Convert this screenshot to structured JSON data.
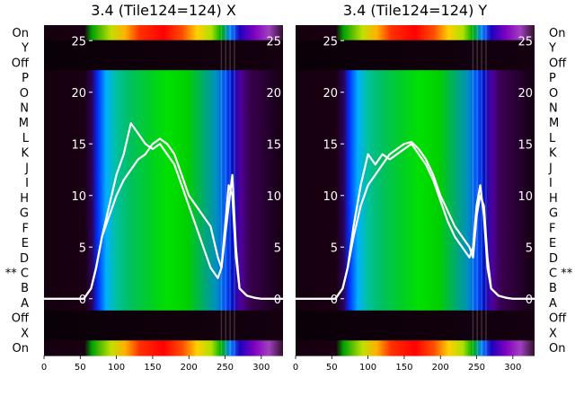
{
  "chart_data": [
    {
      "type": "heatmap",
      "title": "3.4 (Tile124=124) X",
      "row_labels": [
        "On",
        "Y",
        "Off",
        "P",
        "O",
        "N",
        "M",
        "L",
        "K",
        "J",
        "I",
        "H",
        "G",
        "F",
        "E",
        "D",
        "** C",
        "B",
        "A",
        "Off",
        "X",
        "On"
      ],
      "x_ticks": [
        0,
        50,
        100,
        150,
        200,
        250,
        300
      ],
      "xlim": [
        0,
        330
      ],
      "overlay_y_ticks": [
        0,
        5,
        10,
        15,
        20,
        25
      ],
      "overlay_ylim": [
        -5.5,
        26.5
      ],
      "series": [
        {
          "x": [
            0,
            55,
            65,
            72,
            80,
            90,
            100,
            110,
            120,
            130,
            140,
            150,
            160,
            170,
            180,
            190,
            200,
            210,
            220,
            230,
            240,
            245,
            250,
            255,
            260,
            265,
            270,
            280,
            290,
            300,
            310,
            320,
            330
          ],
          "y": [
            0,
            0,
            1,
            3,
            6,
            8,
            10,
            11.5,
            12.5,
            13.5,
            14,
            15,
            15.5,
            15,
            14,
            12,
            10,
            9,
            8,
            7,
            4,
            3,
            6,
            9,
            12,
            5,
            1,
            0.3,
            0.1,
            0,
            0,
            0,
            0
          ]
        },
        {
          "x": [
            0,
            55,
            65,
            72,
            80,
            90,
            100,
            110,
            120,
            130,
            140,
            150,
            160,
            170,
            180,
            190,
            200,
            210,
            220,
            230,
            240,
            245,
            250,
            255,
            260,
            265,
            270,
            280,
            290,
            300,
            310,
            320,
            330
          ],
          "y": [
            0,
            0,
            1,
            3,
            6,
            9,
            12,
            14,
            17,
            16,
            15,
            14.5,
            15,
            14,
            13,
            11,
            9,
            7,
            5,
            3,
            2,
            3,
            7,
            11,
            10,
            4,
            1,
            0.3,
            0.1,
            0,
            0,
            0,
            0
          ]
        }
      ]
    },
    {
      "type": "heatmap",
      "title": "3.4 (Tile124=124) Y",
      "row_labels": [
        "On",
        "Y",
        "Off",
        "P",
        "O",
        "N",
        "M",
        "L",
        "K",
        "J",
        "I",
        "H",
        "G",
        "F",
        "E",
        "D",
        "C **",
        "B",
        "A",
        "Off",
        "X",
        "On"
      ],
      "x_ticks": [
        0,
        50,
        100,
        150,
        200,
        250,
        300
      ],
      "xlim": [
        0,
        330
      ],
      "overlay_y_ticks": [
        0,
        5,
        10,
        15,
        20,
        25
      ],
      "overlay_ylim": [
        -5.5,
        26.5
      ],
      "series": [
        {
          "x": [
            0,
            55,
            65,
            72,
            80,
            90,
            100,
            110,
            120,
            130,
            140,
            150,
            160,
            170,
            180,
            190,
            200,
            210,
            220,
            230,
            240,
            245,
            250,
            255,
            260,
            265,
            270,
            280,
            290,
            300,
            310,
            320,
            330
          ],
          "y": [
            0,
            0,
            1,
            3,
            6,
            9,
            11,
            12,
            13,
            14,
            14.5,
            15,
            15.2,
            14.5,
            13.5,
            12,
            10,
            8.5,
            7,
            6,
            5,
            4,
            8,
            10,
            9,
            4,
            1,
            0.3,
            0.1,
            0,
            0,
            0,
            0
          ]
        },
        {
          "x": [
            0,
            55,
            65,
            72,
            80,
            90,
            100,
            110,
            120,
            130,
            140,
            150,
            160,
            170,
            180,
            190,
            200,
            210,
            220,
            230,
            240,
            245,
            250,
            255,
            260,
            265,
            270,
            280,
            290,
            300,
            310,
            320,
            330
          ],
          "y": [
            0,
            0,
            1,
            3,
            7,
            11,
            14,
            13,
            14,
            13.5,
            14,
            14.5,
            15,
            14,
            13,
            11.5,
            9.5,
            7.5,
            6,
            5,
            4,
            5,
            9,
            11,
            8,
            3,
            1,
            0.3,
            0.1,
            0,
            0,
            0,
            0
          ]
        }
      ]
    }
  ]
}
